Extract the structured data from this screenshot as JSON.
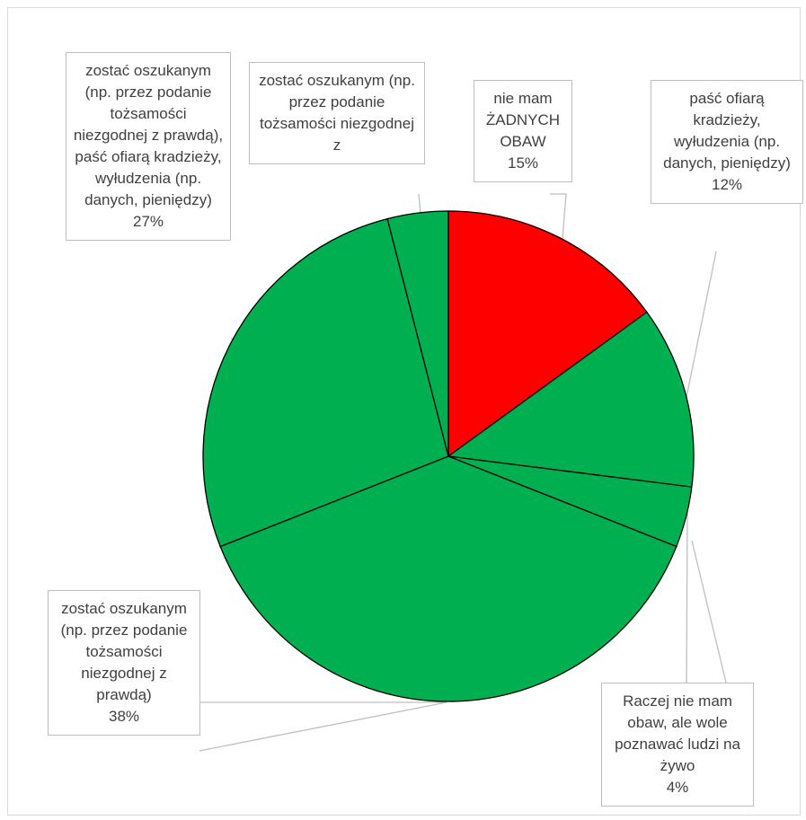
{
  "chart_data": {
    "type": "pie",
    "title": "",
    "colors": {
      "red": "#ff0000",
      "green": "#00b050",
      "border": "#000000",
      "leader": "#bfbfbf"
    },
    "slices": [
      {
        "label": "nie mam ŻADNYCH OBAW",
        "pct_label": "15%",
        "value": 15,
        "color": "#ff0000"
      },
      {
        "label": "paść ofiarą kradzieży, wyłudzenia (np. danych, pieniędzy)",
        "pct_label": "12%",
        "value": 12,
        "color": "#00b050"
      },
      {
        "label": "Raczej nie mam obaw, ale wole poznawać ludzi na żywo",
        "pct_label": "4%",
        "value": 4,
        "color": "#00b050"
      },
      {
        "label": "zostać oszukanym (np. przez podanie tożsamości niezgodnej z prawdą)",
        "pct_label": "38%",
        "value": 38,
        "color": "#00b050"
      },
      {
        "label": "zostać oszukanym (np. przez podanie tożsamości niezgodnej z prawdą), paść ofiarą kradzieży, wyłudzenia (np. danych, pieniędzy)",
        "pct_label": "27%",
        "value": 27,
        "color": "#00b050"
      },
      {
        "label": "zostać oszukanym (np. przez podanie tożsamości niezgodnej z",
        "pct_label": "",
        "value": 4,
        "color": "#00b050"
      }
    ]
  }
}
